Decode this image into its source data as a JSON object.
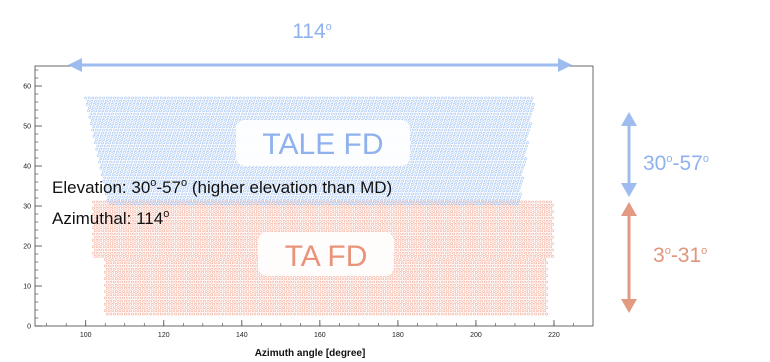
{
  "chart_data": {
    "type": "scatter",
    "xlabel": "Azimuth angle [degree]",
    "ylabel": "",
    "xlim": [
      87,
      230
    ],
    "ylim": [
      0,
      65
    ],
    "x_ticks": [
      100,
      120,
      140,
      160,
      180,
      200,
      220
    ],
    "y_ticks": [
      0,
      10,
      20,
      30,
      40,
      50,
      60
    ],
    "grid": false,
    "series": [
      {
        "name": "TALE FD",
        "color": "#8fb2ee",
        "elevation_range": [
          30,
          57
        ],
        "azimuth_span": 114
      },
      {
        "name": "TA FD",
        "color": "#f0a08a",
        "elevation_range": [
          3,
          31
        ],
        "azimuth_span": 114
      }
    ]
  },
  "annotations": {
    "azimuth_span": "114",
    "tale_elevation": "30",
    "tale_elevation_end": "-57",
    "ta_elevation": "3",
    "ta_elevation_end": "-31",
    "degree_symbol": "o",
    "elevation_line": "Elevation: 30",
    "elevation_mid": "-57",
    "elevation_tail": " (higher elevation than MD)",
    "azimuthal_line": "Azimuthal: 114",
    "tale_label": "TALE FD",
    "ta_label": "TA FD"
  },
  "colors": {
    "blue": "#8fb2ee",
    "red": "#e0957c",
    "blue_dots": "#9fc1f2",
    "red_dots": "#f3a894"
  }
}
